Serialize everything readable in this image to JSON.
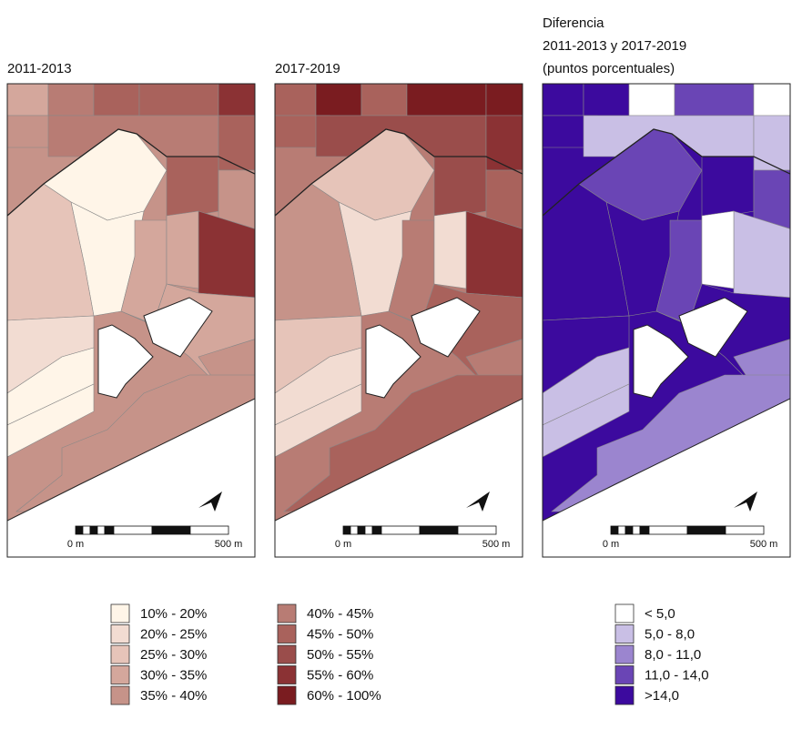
{
  "panels": [
    {
      "title": [
        "2011-2013"
      ],
      "scale_start": "0 m",
      "scale_end": "500 m"
    },
    {
      "title": [
        "2017-2019"
      ],
      "scale_start": "0 m",
      "scale_end": "500 m"
    },
    {
      "title": [
        "Diferencia",
        "2011-2013 y 2017-2019",
        "(puntos porcentuales)"
      ],
      "scale_start": "0 m",
      "scale_end": "500 m"
    }
  ],
  "legends": [
    {
      "items": [
        {
          "label": "10% - 20%",
          "color": "#fff5e8"
        },
        {
          "label": "20% - 25%",
          "color": "#f2dcd2"
        },
        {
          "label": "25% - 30%",
          "color": "#e6c4b9"
        },
        {
          "label": "30% - 35%",
          "color": "#d4a79c"
        },
        {
          "label": "35% - 40%",
          "color": "#c69389"
        }
      ]
    },
    {
      "items": [
        {
          "label": "40% - 45%",
          "color": "#b87c74"
        },
        {
          "label": "45% - 50%",
          "color": "#a9625c"
        },
        {
          "label": "50% - 55%",
          "color": "#9a4d4b"
        },
        {
          "label": "55% - 60%",
          "color": "#8b3234"
        },
        {
          "label": "60% - 100%",
          "color": "#7a1c20"
        }
      ]
    },
    {
      "items": [
        {
          "label": "< 5,0",
          "color": "#ffffff"
        },
        {
          "label": "5,0 - 8,0",
          "color": "#c9bfe5"
        },
        {
          "label": "8,0 - 11,0",
          "color": "#9b85cf"
        },
        {
          "label": "11,0 - 14,0",
          "color": "#6a45b5"
        },
        {
          "label": ">14,0",
          "color": "#3c0a9e"
        }
      ]
    }
  ]
}
